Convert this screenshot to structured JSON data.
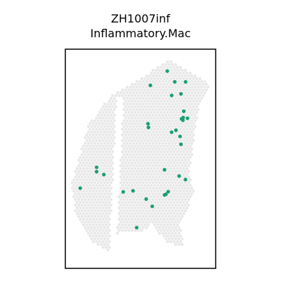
{
  "chart_data": {
    "type": "scatter",
    "title_lines": [
      "ZH1007inf",
      "Inflammatory.Mac"
    ],
    "xlim": [
      0,
      100
    ],
    "ylim": [
      0,
      100
    ],
    "grid": false,
    "legend": "none",
    "colors": {
      "background_spot": "#e8e8e8",
      "highlight_spot": "#1a9e74",
      "frame": "#000000"
    },
    "series": [
      {
        "points": [
          [
            67.8,
            90.0
          ],
          [
            72.8,
            85.1
          ],
          [
            80.0,
            85.1
          ],
          [
            56.6,
            83.5
          ],
          [
            76.9,
            79.6
          ],
          [
            70.7,
            78.9
          ],
          [
            78.8,
            71.7
          ],
          [
            78.4,
            68.8
          ],
          [
            81.2,
            68.5
          ],
          [
            77.3,
            68.2
          ],
          [
            78.2,
            67.6
          ],
          [
            55.0,
            66.0
          ],
          [
            55.3,
            64.3
          ],
          [
            73.6,
            63.0
          ],
          [
            70.7,
            62.1
          ],
          [
            76.3,
            60.2
          ],
          [
            76.9,
            56.6
          ],
          [
            20.8,
            46.1
          ],
          [
            66.0,
            45.0
          ],
          [
            20.8,
            44.1
          ],
          [
            25.6,
            42.8
          ],
          [
            75.7,
            42.1
          ],
          [
            79.9,
            40.5
          ],
          [
            9.9,
            36.6
          ],
          [
            45.0,
            35.4
          ],
          [
            38.5,
            34.9
          ],
          [
            68.4,
            35.0
          ],
          [
            66.9,
            33.8
          ],
          [
            66.0,
            33.5
          ],
          [
            53.8,
            31.6
          ],
          [
            57.8,
            28.3
          ],
          [
            47.5,
            18.6
          ]
        ]
      }
    ]
  }
}
